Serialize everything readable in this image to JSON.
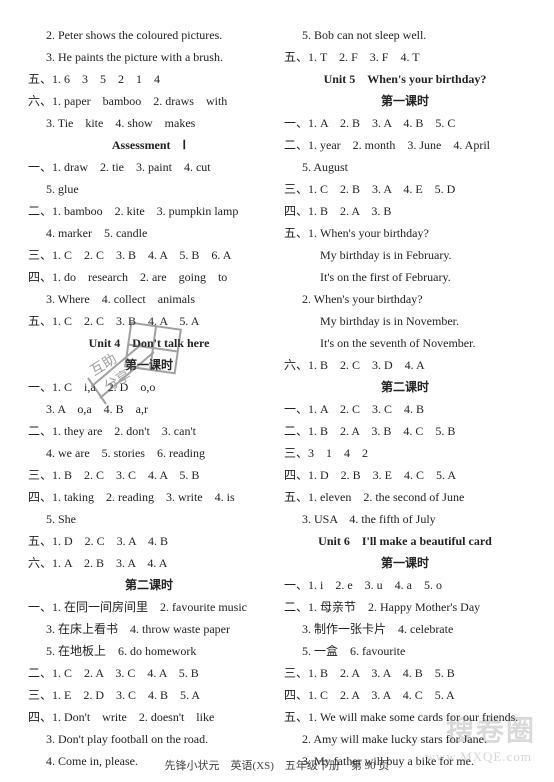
{
  "leftColumn": [
    {
      "cls": "pad1",
      "text": "2. Peter shows the coloured pictures."
    },
    {
      "cls": "pad1",
      "text": "3. He paints the picture with a brush."
    },
    {
      "cls": "",
      "text": "五、1. 6　3　5　2　1　4"
    },
    {
      "cls": "",
      "text": "六、1. paper　bamboo　2. draws　with"
    },
    {
      "cls": "pad1",
      "text": "3. Tie　kite　4. show　makes"
    },
    {
      "cls": "center",
      "text": "Assessment　Ⅰ"
    },
    {
      "cls": "",
      "text": "一、1. draw　2. tie　3. paint　4. cut"
    },
    {
      "cls": "pad1",
      "text": "5. glue"
    },
    {
      "cls": "",
      "text": "二、1. bamboo　2. kite　3. pumpkin lamp"
    },
    {
      "cls": "pad1",
      "text": "4. marker　5. candle"
    },
    {
      "cls": "",
      "text": "三、1. C　2. C　3. B　4. A　5. B　6. A"
    },
    {
      "cls": "",
      "text": "四、1. do　research　2. are　going　to"
    },
    {
      "cls": "pad1",
      "text": "3. Where　4. collect　animals"
    },
    {
      "cls": "",
      "text": "五、1. C　2. C　3. B　4. A　5. A"
    },
    {
      "cls": "center",
      "text": "Unit 4　Don't talk here"
    },
    {
      "cls": "center",
      "text": "第一课时"
    },
    {
      "cls": "",
      "text": "一、1. C　i,a　2. D　o,o"
    },
    {
      "cls": "pad1",
      "text": "3. A　o,a　4. B　a,r"
    },
    {
      "cls": "",
      "text": "二、1. they are　2. don't　3. can't"
    },
    {
      "cls": "pad1",
      "text": "4. we are　5. stories　6. reading"
    },
    {
      "cls": "",
      "text": "三、1. B　2. C　3. C　4. A　5. B"
    },
    {
      "cls": "",
      "text": "四、1. taking　2. reading　3. write　4. is"
    },
    {
      "cls": "pad1",
      "text": "5. She"
    },
    {
      "cls": "",
      "text": "五、1. D　2. C　3. A　4. B"
    },
    {
      "cls": "",
      "text": "六、1. A　2. B　3. A　4. A"
    },
    {
      "cls": "center",
      "text": "第二课时"
    },
    {
      "cls": "",
      "text": "一、1. 在同一间房间里　2. favourite music"
    },
    {
      "cls": "pad1",
      "text": "3. 在床上看书　4. throw waste paper"
    },
    {
      "cls": "pad1",
      "text": "5. 在地板上　6. do homework"
    },
    {
      "cls": "",
      "text": "二、1. C　2. A　3. C　4. A　5. B"
    },
    {
      "cls": "",
      "text": "三、1. E　2. D　3. C　4. B　5. A"
    },
    {
      "cls": "",
      "text": "四、1. Don't　write　2. doesn't　like"
    },
    {
      "cls": "pad1",
      "text": "3. Don't play football on the road."
    },
    {
      "cls": "pad1",
      "text": "4. Come in, please."
    }
  ],
  "rightColumn": [
    {
      "cls": "pad1",
      "text": "5. Bob can not sleep well."
    },
    {
      "cls": "",
      "text": "五、1. T　2. F　3. F　4. T"
    },
    {
      "cls": "center",
      "text": "Unit 5　When's your birthday?"
    },
    {
      "cls": "center",
      "text": "第一课时"
    },
    {
      "cls": "",
      "text": "一、1. A　2. B　3. A　4. B　5. C"
    },
    {
      "cls": "",
      "text": "二、1. year　2. month　3. June　4. April"
    },
    {
      "cls": "pad1",
      "text": "5. August"
    },
    {
      "cls": "",
      "text": "三、1. C　2. B　3. A　4. E　5. D"
    },
    {
      "cls": "",
      "text": "四、1. B　2. A　3. B"
    },
    {
      "cls": "",
      "text": "五、1. When's your birthday?"
    },
    {
      "cls": "pad2",
      "text": "My birthday is in February."
    },
    {
      "cls": "pad2",
      "text": "It's on the first of February."
    },
    {
      "cls": "pad1",
      "text": "2. When's your birthday?"
    },
    {
      "cls": "pad2",
      "text": "My birthday is in November."
    },
    {
      "cls": "pad2",
      "text": "It's on the seventh of November."
    },
    {
      "cls": "",
      "text": "六、1. B　2. C　3. D　4. A"
    },
    {
      "cls": "center",
      "text": "第二课时"
    },
    {
      "cls": "",
      "text": "一、1. A　2. C　3. C　4. B"
    },
    {
      "cls": "",
      "text": "二、1. B　2. A　3. B　4. C　5. B"
    },
    {
      "cls": "",
      "text": "三、3　1　4　2"
    },
    {
      "cls": "",
      "text": "四、1. D　2. B　3. E　4. C　5. A"
    },
    {
      "cls": "",
      "text": "五、1. eleven　2. the second of June"
    },
    {
      "cls": "pad1",
      "text": "3. USA　4. the fifth of July"
    },
    {
      "cls": "center",
      "text": "Unit 6　I'll make a beautiful card"
    },
    {
      "cls": "center",
      "text": "第一课时"
    },
    {
      "cls": "",
      "text": "一、1. i　2. e　3. u　4. a　5. o"
    },
    {
      "cls": "",
      "text": "二、1. 母亲节　2. Happy Mother's Day"
    },
    {
      "cls": "pad1",
      "text": "3. 制作一张卡片　4. celebrate"
    },
    {
      "cls": "pad1",
      "text": "5. 一盒　6. favourite"
    },
    {
      "cls": "",
      "text": "三、1. B　2. A　3. A　4. B　5. B"
    },
    {
      "cls": "",
      "text": "四、1. C　2. A　3. A　4. C　5. A"
    },
    {
      "cls": "",
      "text": "五、1. We will make some cards for our friends."
    },
    {
      "cls": "pad1",
      "text": "2. Amy will make lucky stars for Jane."
    },
    {
      "cls": "pad1",
      "text": "3. My father will buy a bike for me."
    }
  ],
  "footer": "先锋小状元　英语(XS)　五年级下册　第 90 页",
  "watermark": "搜卷圈",
  "watermarkSub": "www.MXQE.com"
}
